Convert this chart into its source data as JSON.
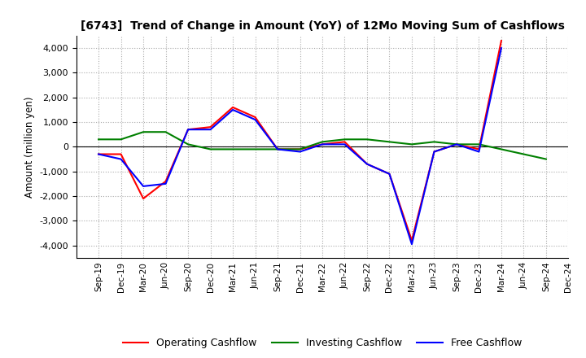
{
  "title": "[6743]  Trend of Change in Amount (YoY) of 12Mo Moving Sum of Cashflows",
  "ylabel": "Amount (million yen)",
  "ylim": [
    -4500,
    4500
  ],
  "yticks": [
    -4000,
    -3000,
    -2000,
    -1000,
    0,
    1000,
    2000,
    3000,
    4000
  ],
  "x_labels": [
    "Sep-19",
    "Dec-19",
    "Mar-20",
    "Jun-20",
    "Sep-20",
    "Dec-20",
    "Mar-21",
    "Jun-21",
    "Sep-21",
    "Dec-21",
    "Mar-22",
    "Jun-22",
    "Sep-22",
    "Dec-22",
    "Mar-23",
    "Jun-23",
    "Sep-23",
    "Dec-23",
    "Mar-24",
    "Jun-24",
    "Sep-24",
    "Dec-24"
  ],
  "operating": [
    -300,
    -300,
    -2100,
    -1400,
    700,
    800,
    1600,
    1200,
    -100,
    -100,
    100,
    200,
    -700,
    -1100,
    -3800,
    -200,
    100,
    -100,
    4300,
    null,
    null,
    null
  ],
  "investing": [
    300,
    300,
    600,
    600,
    100,
    -100,
    -100,
    -100,
    -100,
    -100,
    200,
    300,
    300,
    200,
    100,
    200,
    100,
    100,
    -100,
    -300,
    -500,
    null
  ],
  "free": [
    -300,
    -500,
    -1600,
    -1500,
    700,
    700,
    1500,
    1100,
    -100,
    -200,
    100,
    100,
    -700,
    -1100,
    -3950,
    -200,
    100,
    -200,
    4000,
    null,
    null,
    null
  ],
  "colors": {
    "operating": "#ff0000",
    "investing": "#008000",
    "free": "#0000ff"
  },
  "legend_labels": [
    "Operating Cashflow",
    "Investing Cashflow",
    "Free Cashflow"
  ],
  "background_color": "#ffffff",
  "grid_color": "#aaaaaa"
}
